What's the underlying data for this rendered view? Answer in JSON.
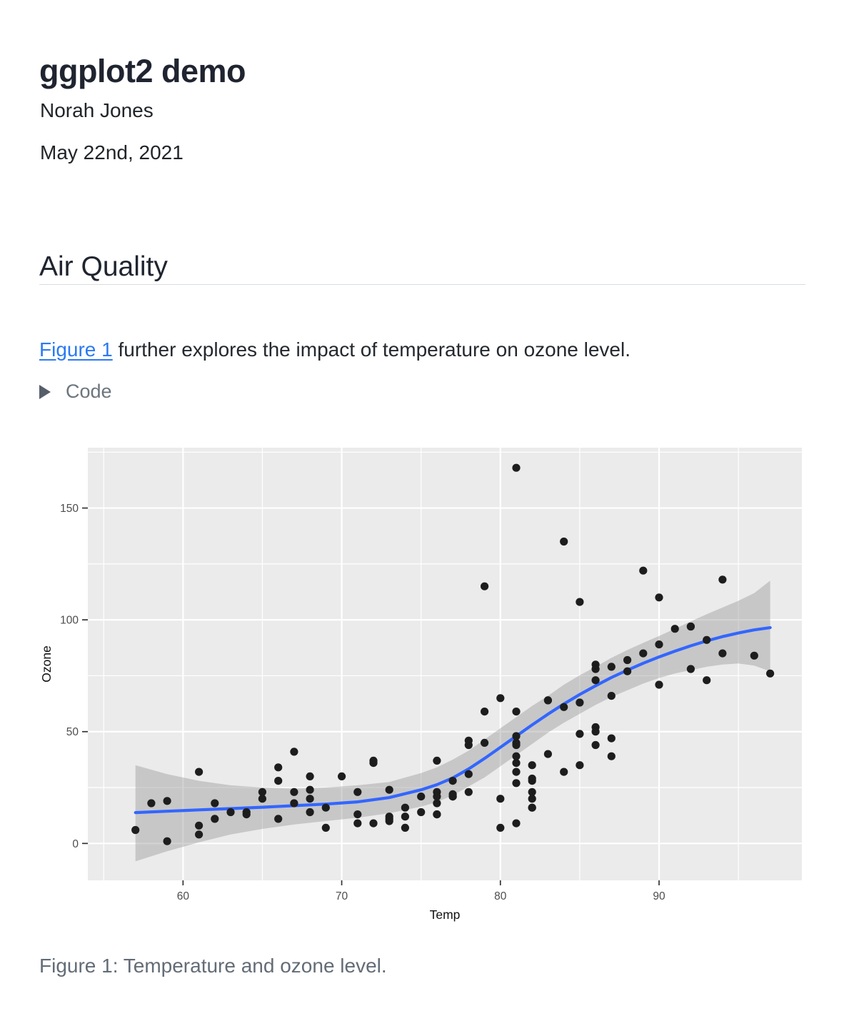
{
  "header": {
    "title": "ggplot2 demo",
    "author": "Norah Jones",
    "date": "May 22nd, 2021"
  },
  "section": {
    "heading": "Air Quality"
  },
  "intro": {
    "link_text": "Figure 1",
    "text_after": " further explores the impact of temperature on ozone level."
  },
  "code_block": {
    "summary_label": "Code"
  },
  "figure": {
    "caption": "Figure 1: Temperature and ozone level."
  },
  "colors": {
    "link": "#2b7af2",
    "heading_text": "#1f2430",
    "muted_text": "#6c757d"
  },
  "chart_data": {
    "type": "scatter",
    "title": "",
    "xlabel": "Temp",
    "ylabel": "Ozone",
    "xlim": [
      54,
      99
    ],
    "ylim": [
      -16.5,
      177
    ],
    "x_ticks": [
      60,
      70,
      80,
      90
    ],
    "y_ticks": [
      0,
      50,
      100,
      150
    ],
    "x_minor": [
      55,
      65,
      75,
      85,
      95
    ],
    "y_minor": [
      25,
      75,
      125,
      175
    ],
    "grid": "on",
    "legend": "none",
    "style": {
      "panel_bg": "#ebebeb",
      "grid_color": "#ffffff",
      "point_color": "#1d1d1d",
      "smooth_color": "#3366ff",
      "ribbon_color": "rgba(150,150,150,0.42)",
      "tick_text_color": "#4d4d4d",
      "axis_title_color": "#111111",
      "tick_mark_color": "#333333"
    },
    "points": [
      [
        67,
        41
      ],
      [
        72,
        36
      ],
      [
        74,
        12
      ],
      [
        62,
        18
      ],
      [
        66,
        28
      ],
      [
        65,
        23
      ],
      [
        59,
        19
      ],
      [
        61,
        8
      ],
      [
        74,
        7
      ],
      [
        69,
        16
      ],
      [
        66,
        11
      ],
      [
        68,
        14
      ],
      [
        58,
        18
      ],
      [
        64,
        14
      ],
      [
        66,
        34
      ],
      [
        57,
        6
      ],
      [
        68,
        30
      ],
      [
        62,
        11
      ],
      [
        59,
        1
      ],
      [
        73,
        11
      ],
      [
        61,
        4
      ],
      [
        61,
        32
      ],
      [
        67,
        23
      ],
      [
        81,
        45
      ],
      [
        79,
        115
      ],
      [
        76,
        37
      ],
      [
        82,
        29
      ],
      [
        90,
        71
      ],
      [
        87,
        39
      ],
      [
        82,
        23
      ],
      [
        77,
        21
      ],
      [
        72,
        37
      ],
      [
        65,
        20
      ],
      [
        73,
        12
      ],
      [
        76,
        13
      ],
      [
        84,
        135
      ],
      [
        85,
        49
      ],
      [
        81,
        32
      ],
      [
        83,
        64
      ],
      [
        83,
        40
      ],
      [
        88,
        77
      ],
      [
        92,
        97
      ],
      [
        92,
        97
      ],
      [
        89,
        85
      ],
      [
        73,
        10
      ],
      [
        81,
        27
      ],
      [
        80,
        7
      ],
      [
        81,
        48
      ],
      [
        82,
        35
      ],
      [
        84,
        61
      ],
      [
        87,
        79
      ],
      [
        85,
        63
      ],
      [
        74,
        16
      ],
      [
        86,
        80
      ],
      [
        85,
        108
      ],
      [
        82,
        20
      ],
      [
        86,
        52
      ],
      [
        88,
        82
      ],
      [
        86,
        50
      ],
      [
        83,
        64
      ],
      [
        81,
        59
      ],
      [
        81,
        39
      ],
      [
        81,
        9
      ],
      [
        82,
        16
      ],
      [
        86,
        78
      ],
      [
        85,
        35
      ],
      [
        87,
        66
      ],
      [
        89,
        122
      ],
      [
        90,
        89
      ],
      [
        90,
        110
      ],
      [
        86,
        44
      ],
      [
        82,
        28
      ],
      [
        80,
        65
      ],
      [
        77,
        22
      ],
      [
        79,
        59
      ],
      [
        76,
        23
      ],
      [
        78,
        31
      ],
      [
        78,
        44
      ],
      [
        77,
        21
      ],
      [
        72,
        9
      ],
      [
        79,
        45
      ],
      [
        81,
        168
      ],
      [
        86,
        73
      ],
      [
        97,
        76
      ],
      [
        94,
        118
      ],
      [
        96,
        84
      ],
      [
        94,
        85
      ],
      [
        91,
        96
      ],
      [
        92,
        78
      ],
      [
        93,
        73
      ],
      [
        93,
        91
      ],
      [
        87,
        47
      ],
      [
        84,
        32
      ],
      [
        80,
        20
      ],
      [
        78,
        23
      ],
      [
        75,
        21
      ],
      [
        73,
        24
      ],
      [
        81,
        44
      ],
      [
        76,
        21
      ],
      [
        77,
        28
      ],
      [
        71,
        9
      ],
      [
        71,
        13
      ],
      [
        78,
        46
      ],
      [
        67,
        18
      ],
      [
        76,
        13
      ],
      [
        68,
        24
      ],
      [
        82,
        16
      ],
      [
        64,
        13
      ],
      [
        71,
        23
      ],
      [
        81,
        36
      ],
      [
        69,
        7
      ],
      [
        63,
        14
      ],
      [
        70,
        30
      ],
      [
        75,
        14
      ],
      [
        76,
        18
      ],
      [
        68,
        20
      ]
    ],
    "smooth": {
      "method": "loess",
      "x": [
        57,
        59,
        61,
        63,
        65,
        67,
        69,
        71,
        73,
        75,
        76,
        77,
        78,
        79,
        80,
        81,
        82,
        83,
        84,
        85,
        86,
        87,
        88,
        89,
        90,
        91,
        92,
        93,
        94,
        95,
        96,
        97
      ],
      "fit": [
        13.8,
        14.4,
        15.0,
        15.6,
        16.2,
        16.9,
        17.6,
        18.6,
        20.5,
        24.0,
        26.3,
        29.3,
        33.3,
        38.0,
        43.0,
        48.0,
        53.0,
        57.8,
        62.4,
        66.6,
        70.5,
        74.2,
        77.5,
        80.6,
        83.4,
        86.0,
        88.4,
        90.6,
        92.5,
        94.1,
        95.5,
        96.5
      ],
      "lower": [
        -8.0,
        -3.5,
        0.5,
        4.0,
        6.5,
        8.5,
        10.0,
        11.5,
        13.5,
        16.5,
        18.5,
        21.5,
        25.5,
        29.5,
        34.5,
        39.5,
        44.5,
        49.5,
        54.0,
        58.0,
        62.0,
        65.5,
        68.5,
        71.5,
        74.0,
        76.0,
        77.5,
        79.0,
        80.0,
        80.5,
        79.5,
        77.0
      ],
      "upper": [
        35.0,
        31.0,
        28.0,
        26.0,
        25.0,
        24.5,
        25.0,
        26.0,
        27.5,
        31.5,
        34.0,
        37.5,
        41.5,
        46.5,
        51.5,
        56.5,
        61.5,
        66.0,
        71.0,
        75.2,
        79.0,
        83.0,
        86.5,
        89.7,
        92.8,
        96.0,
        99.3,
        102.5,
        105.5,
        108.5,
        112.0,
        117.5
      ]
    }
  }
}
